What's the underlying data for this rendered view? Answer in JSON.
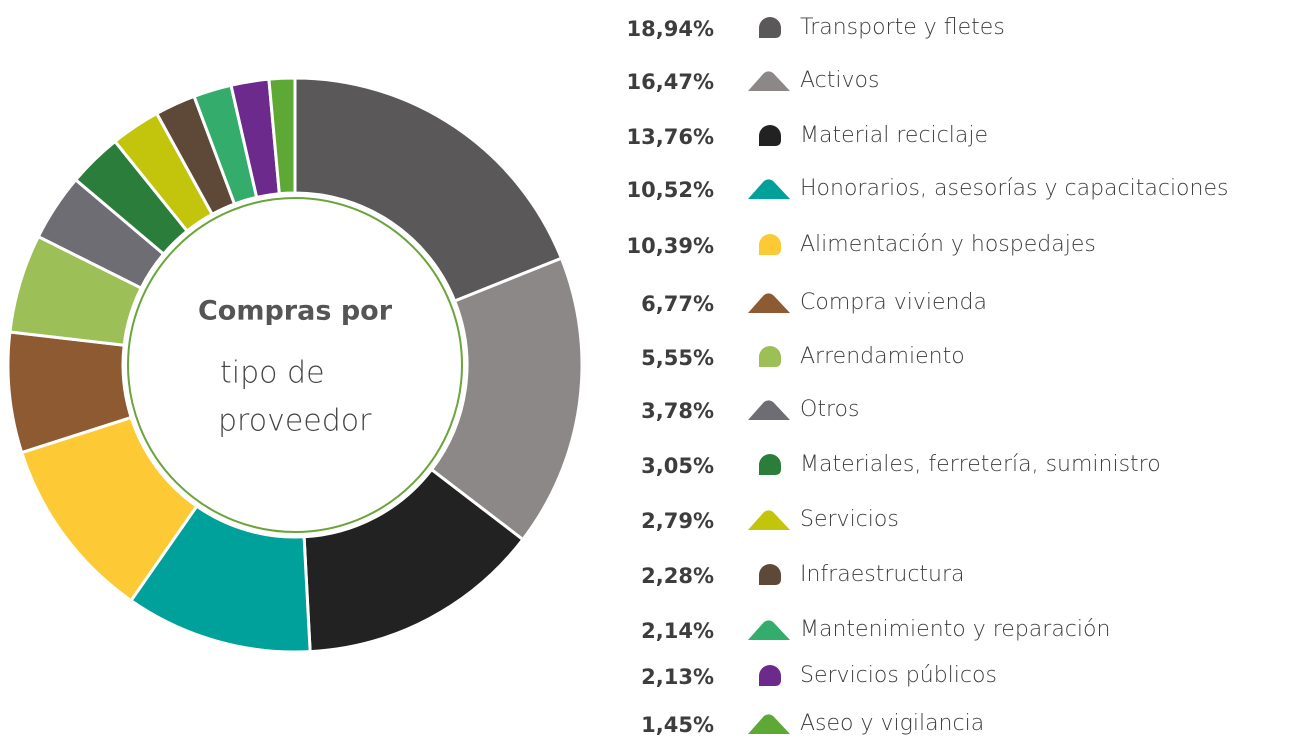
{
  "chart_data": {
    "type": "donut",
    "center_text": {
      "bold": "Compras por",
      "lines": [
        "tipo de",
        "proveedor"
      ]
    },
    "categories": [
      "Transporte y fletes",
      "Activos",
      "Material reciclaje",
      "Honorarios, asesorías y capacitaciones",
      "Alimentación y hospedajes",
      "Compra vivienda",
      "Arrendamiento",
      "Otros",
      "Materiales, ferretería, suministro",
      "Servicios",
      "Infraestructura",
      "Mantenimiento y reparación",
      "Servicios públicos",
      "Aseo y vigilancia"
    ],
    "values": [
      18.94,
      16.47,
      13.76,
      10.52,
      10.39,
      6.77,
      5.55,
      3.78,
      3.05,
      2.79,
      2.28,
      2.14,
      2.13,
      1.45
    ],
    "value_labels": [
      "18,94%",
      "16,47%",
      "13,76%",
      "10,52%",
      "10,39%",
      "6,77%",
      "5,55%",
      "3,78%",
      "3,05%",
      "2,79%",
      "2,28%",
      "2,14%",
      "2,13%",
      "1,45%"
    ],
    "colors": [
      "#5a5859",
      "#8c8888",
      "#222222",
      "#00a19a",
      "#fdca35",
      "#8d5a32",
      "#9dbf58",
      "#6f6d74",
      "#2a7d3a",
      "#c2c50c",
      "#5e4838",
      "#34ad6c",
      "#6b2a8c",
      "#5ea836"
    ]
  }
}
